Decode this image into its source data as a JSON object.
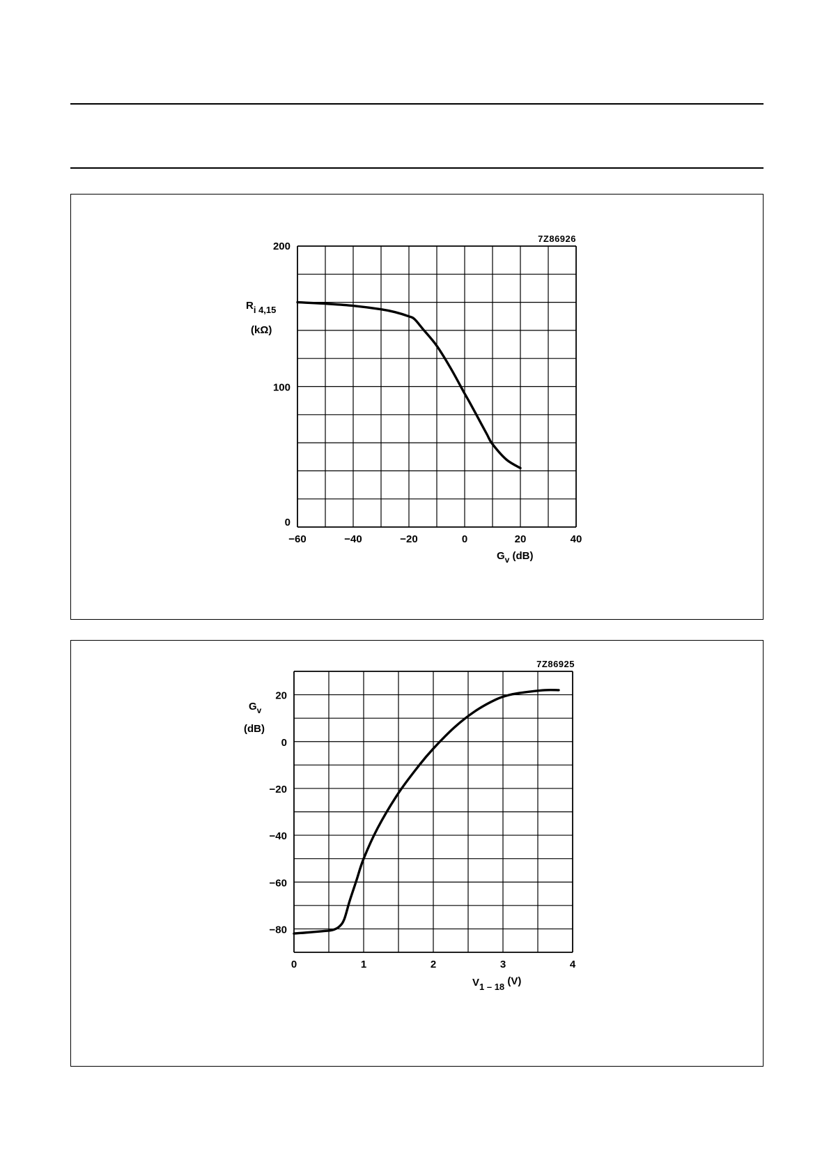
{
  "chart_data": [
    {
      "type": "line",
      "figure_code": "7Z86926",
      "title": "",
      "xlabel": "G",
      "xlabel_sub": "v",
      "xlabel_unit": " (dB)",
      "ylabel": "R",
      "ylabel_sub": "i 4,15",
      "ylabel_unit": "(kΩ)",
      "xlim": [
        -60,
        40
      ],
      "ylim": [
        0,
        200
      ],
      "x_ticks": [
        -60,
        -40,
        -20,
        0,
        20,
        40
      ],
      "x_tick_labels": [
        "−60",
        "−40",
        "−20",
        "0",
        "20",
        "40"
      ],
      "y_ticks": [
        0,
        100,
        200
      ],
      "y_tick_labels": [
        "0",
        "100",
        "200"
      ],
      "x_grid_step": 10,
      "y_grid_step": 20,
      "grid": true,
      "series": [
        {
          "x": [
            -60,
            -50,
            -40,
            -30,
            -25,
            -20,
            -18,
            -15,
            -10,
            -5,
            0,
            2,
            5,
            8,
            10,
            15,
            20
          ],
          "y": [
            160,
            159,
            157.5,
            155,
            153,
            150,
            148,
            141,
            129,
            113,
            95,
            88,
            77,
            66,
            59,
            48,
            42
          ]
        }
      ]
    },
    {
      "type": "line",
      "figure_code": "7Z86925",
      "title": "",
      "xlabel": "V",
      "xlabel_sub": "1 – 18",
      "xlabel_unit": " (V)",
      "ylabel": "G",
      "ylabel_sub": "v",
      "ylabel_unit": "(dB)",
      "xlim": [
        0,
        4
      ],
      "ylim": [
        -90,
        30
      ],
      "x_ticks": [
        0,
        1,
        2,
        3,
        4
      ],
      "x_tick_labels": [
        "0",
        "1",
        "2",
        "3",
        "4"
      ],
      "y_ticks": [
        20,
        0,
        -20,
        -40,
        -60,
        -80
      ],
      "y_tick_labels": [
        "20",
        "0",
        "−20",
        "−40",
        "−60",
        "−80"
      ],
      "x_grid_step": 0.5,
      "y_grid_step": 10,
      "grid": true,
      "series": [
        {
          "x": [
            0,
            0.2,
            0.4,
            0.55,
            0.65,
            0.72,
            0.8,
            0.9,
            1.0,
            1.2,
            1.5,
            1.8,
            2.0,
            2.3,
            2.6,
            2.9,
            3.1,
            3.3,
            3.6,
            3.8
          ],
          "y": [
            -82,
            -81.5,
            -81,
            -80.5,
            -79,
            -76,
            -68,
            -59,
            -50,
            -37,
            -22,
            -10,
            -3,
            6,
            13,
            18,
            20,
            21,
            22,
            22
          ]
        }
      ]
    }
  ]
}
